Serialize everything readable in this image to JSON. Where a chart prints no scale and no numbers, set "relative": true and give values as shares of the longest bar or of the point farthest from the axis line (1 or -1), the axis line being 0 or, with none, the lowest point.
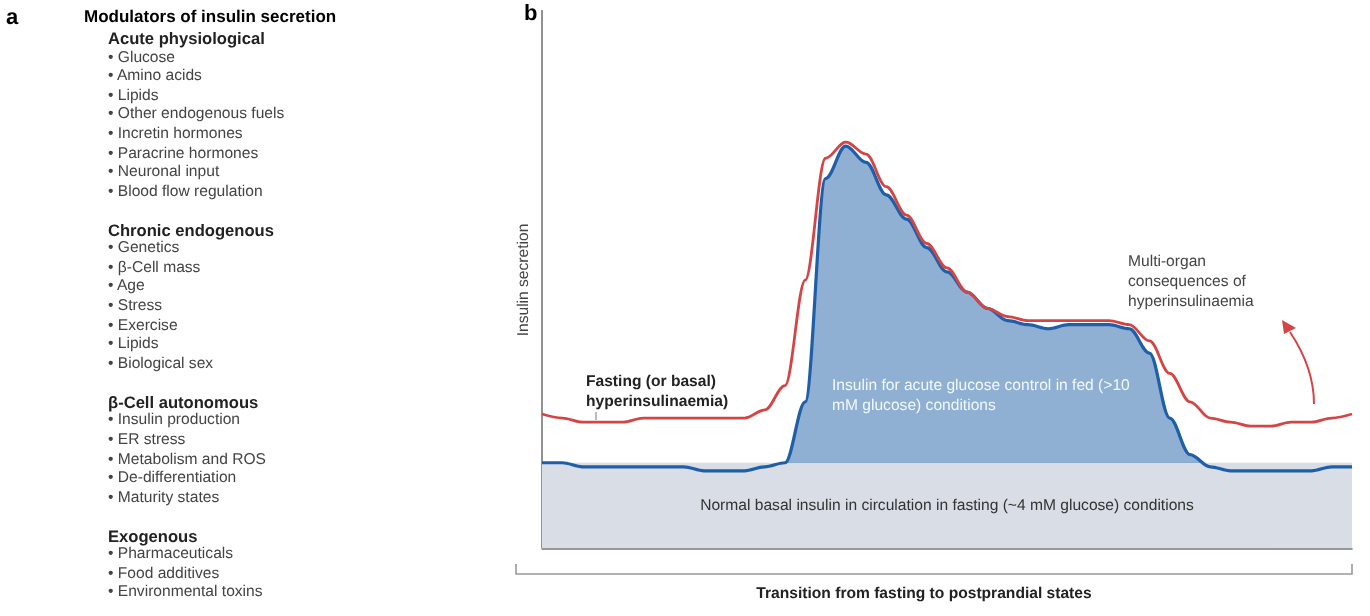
{
  "chart_data": [
    {
      "type": "other",
      "title": "Modulators of insulin secretion",
      "annotations": [
        "a"
      ]
    },
    {
      "type": "other",
      "title": "Acute physiological",
      "annotations": [
        "• Glucose",
        "• Amino acids",
        "• Lipids",
        "• Other endogenous fuels",
        "• Incretin hormones",
        "• Paracrine hormones",
        "• Neuronal input",
        "• Blood flow regulation"
      ]
    },
    {
      "type": "other",
      "title": "Chronic endogenous",
      "annotations": [
        "• Genetics",
        "• β-Cell mass",
        "• Age",
        "• Stress",
        "• Exercise",
        "• Lipids",
        "• Biological sex"
      ]
    },
    {
      "type": "other",
      "title": "β-Cell autonomous",
      "annotations": [
        "• Insulin production",
        "• ER stress",
        "• Metabolism and ROS",
        "• De-differentiation",
        "• Maturity states"
      ]
    },
    {
      "type": "other",
      "title": "Exogenous",
      "annotations": [
        "• Pharmaceuticals",
        "• Food additives",
        "• Environmental toxins"
      ]
    },
    {
      "type": "line",
      "title": "b",
      "xlabel": "Transition from fasting to postprandial states",
      "ylabel": "Insulin secretion",
      "relative": true,
      "legend": false,
      "grid": false,
      "marker": "none",
      "categories": [
        null,
        null,
        null,
        null,
        null,
        null,
        null,
        null,
        null,
        null,
        null,
        null,
        null,
        null,
        null,
        null,
        null,
        null,
        null,
        null,
        null,
        null,
        null,
        null,
        null,
        null,
        null,
        null,
        null,
        null,
        null,
        null,
        null,
        null,
        null,
        null,
        null,
        null,
        null,
        null,
        null
      ],
      "bands": [
        {
          "axis": "y",
          "from": 0,
          "to": 0.21,
          "label": "Normal basal insulin in circulation in fasting (~4 mM glucose) conditions",
          "color": "#d8dde6"
        }
      ],
      "series": [
        {
          "name": "Insulin for acute glucose control in fed (>10 mM glucose) conditions",
          "type": "area",
          "color": "#1f5fa8",
          "values": [
            0.21,
            0.21,
            0.2,
            0.2,
            0.2,
            0.2,
            0.2,
            0.2,
            0.19,
            0.19,
            0.19,
            0.2,
            0.21,
            0.36,
            0.91,
            0.99,
            0.95,
            0.87,
            0.81,
            0.74,
            0.68,
            0.63,
            0.59,
            0.56,
            0.55,
            0.54,
            0.55,
            0.55,
            0.55,
            0.54,
            0.48,
            0.32,
            0.23,
            0.2,
            0.19,
            0.19,
            0.19,
            0.19,
            0.19,
            0.2,
            0.2
          ]
        },
        {
          "name": "Fasting (or basal) hyperinsulinaemia)",
          "type": "line",
          "color": "#d64545",
          "values": [
            0.33,
            0.32,
            0.31,
            0.31,
            0.31,
            0.32,
            0.32,
            0.32,
            0.32,
            0.32,
            0.32,
            0.34,
            0.4,
            0.66,
            0.96,
            1,
            0.97,
            0.89,
            0.82,
            0.75,
            0.69,
            0.63,
            0.59,
            0.57,
            0.56,
            0.56,
            0.56,
            0.56,
            0.56,
            0.55,
            0.51,
            0.43,
            0.36,
            0.32,
            0.31,
            0.3,
            0.3,
            0.31,
            0.31,
            0.32,
            0.33
          ]
        }
      ],
      "annotations": [
        "Multi-organ consequences of hyperinsulinaemia"
      ]
    }
  ]
}
